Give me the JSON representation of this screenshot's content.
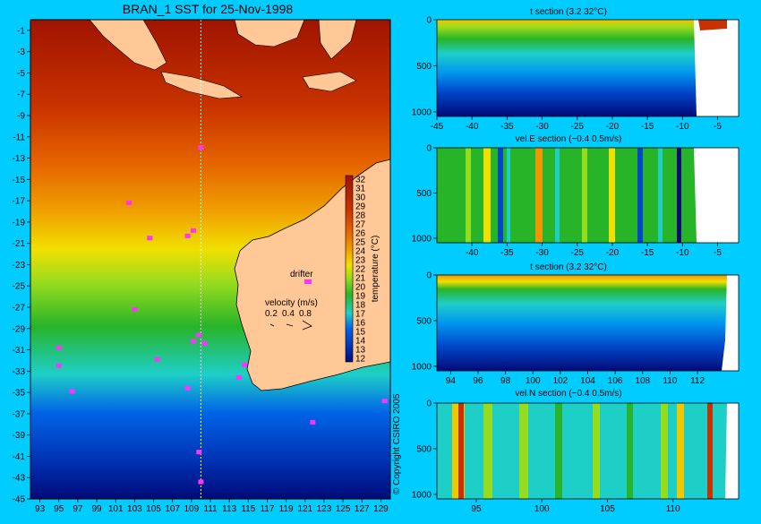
{
  "colors": {
    "background": "#00ccff",
    "land": "#ffc896",
    "colormap": [
      "#000a78",
      "#0032b4",
      "#0064e6",
      "#00a0f0",
      "#1ecfc8",
      "#32c864",
      "#28b428",
      "#96dc1e",
      "#f0f000",
      "#ffc800",
      "#f09600",
      "#e66400",
      "#c83200",
      "#a01400",
      "#ffffff"
    ]
  },
  "chart_data": [
    {
      "id": "sst-map",
      "type": "heatmap",
      "title": "BRAN_1 SST for 25-Nov-1998",
      "x_ticks": [
        93,
        95,
        97,
        99,
        101,
        103,
        105,
        107,
        109,
        111,
        113,
        115,
        117,
        119,
        121,
        123,
        125,
        127,
        129
      ],
      "y_ticks": [
        -1,
        -3,
        -5,
        -7,
        -9,
        -11,
        -13,
        -15,
        -17,
        -19,
        -21,
        -23,
        -25,
        -27,
        -29,
        -31,
        -33,
        -35,
        -37,
        -39,
        -41,
        -43,
        -45
      ],
      "xlim": [
        92,
        130
      ],
      "ylim": [
        -45,
        0
      ],
      "section_line_lon": 110,
      "colorbar": {
        "label": "temperature (°C)",
        "ticks": [
          32,
          31,
          30,
          29,
          28,
          27,
          26,
          25,
          24,
          23,
          22,
          21,
          20,
          19,
          18,
          17,
          16,
          15,
          14,
          13,
          12
        ]
      },
      "legend": {
        "drifter_label": "drifter",
        "velocity_label": "velocity (m/s)",
        "velocity_scale": [
          "0.2",
          "0.4",
          "0.8"
        ]
      },
      "drifters": [
        [
          110,
          -12
        ],
        [
          104.6,
          -20.5
        ],
        [
          108.6,
          -20.3
        ],
        [
          109.2,
          -19.8
        ],
        [
          103,
          -27.2
        ],
        [
          95,
          -30.8
        ],
        [
          95,
          -32.5
        ],
        [
          105.4,
          -31.9
        ],
        [
          109.2,
          -30.2
        ],
        [
          109.8,
          -29.6
        ],
        [
          110.4,
          -30.4
        ],
        [
          114.6,
          -32.4
        ],
        [
          114,
          -33.6
        ],
        [
          96.4,
          -34.9
        ],
        [
          108.6,
          -34.6
        ],
        [
          121.8,
          -37.8
        ],
        [
          129.4,
          -35.8
        ],
        [
          109.8,
          -40.6
        ],
        [
          110,
          -43.4
        ],
        [
          102.4,
          -17.2
        ]
      ],
      "copyright": "© Copyright CSIRO 2005"
    },
    {
      "id": "t-section-lat",
      "type": "heatmap",
      "title": "t section (3.2      32°C)",
      "x_ticks": [
        -45,
        -40,
        -35,
        -30,
        -25,
        -20,
        -15,
        -10,
        -5
      ],
      "y_ticks": [
        0,
        500,
        1000
      ],
      "xlim": [
        -45,
        -2
      ],
      "ylim": [
        1050,
        0
      ]
    },
    {
      "id": "vel-e-section-lat",
      "type": "heatmap",
      "title": "vel.E section (−0.4      0.5m/s)",
      "x_ticks": [
        -40,
        -35,
        -30,
        -25,
        -20,
        -15,
        -10,
        -5
      ],
      "y_ticks": [
        0,
        500,
        1000
      ],
      "xlim": [
        -45,
        -2
      ],
      "ylim": [
        1050,
        0
      ]
    },
    {
      "id": "t-section-lon",
      "type": "heatmap",
      "title": "t section (3.2      32°C)",
      "x_ticks": [
        94,
        96,
        98,
        100,
        102,
        104,
        106,
        108,
        110,
        112
      ],
      "y_ticks": [
        0,
        500,
        1000
      ],
      "xlim": [
        93,
        115
      ],
      "ylim": [
        1050,
        0
      ]
    },
    {
      "id": "vel-n-section-lon",
      "type": "heatmap",
      "title": "vel.N section (−0.4      0.5m/s)",
      "x_ticks": [
        95,
        100,
        105,
        110
      ],
      "y_ticks": [
        0,
        500,
        1000
      ],
      "xlim": [
        92,
        115
      ],
      "ylim": [
        1050,
        0
      ]
    }
  ]
}
